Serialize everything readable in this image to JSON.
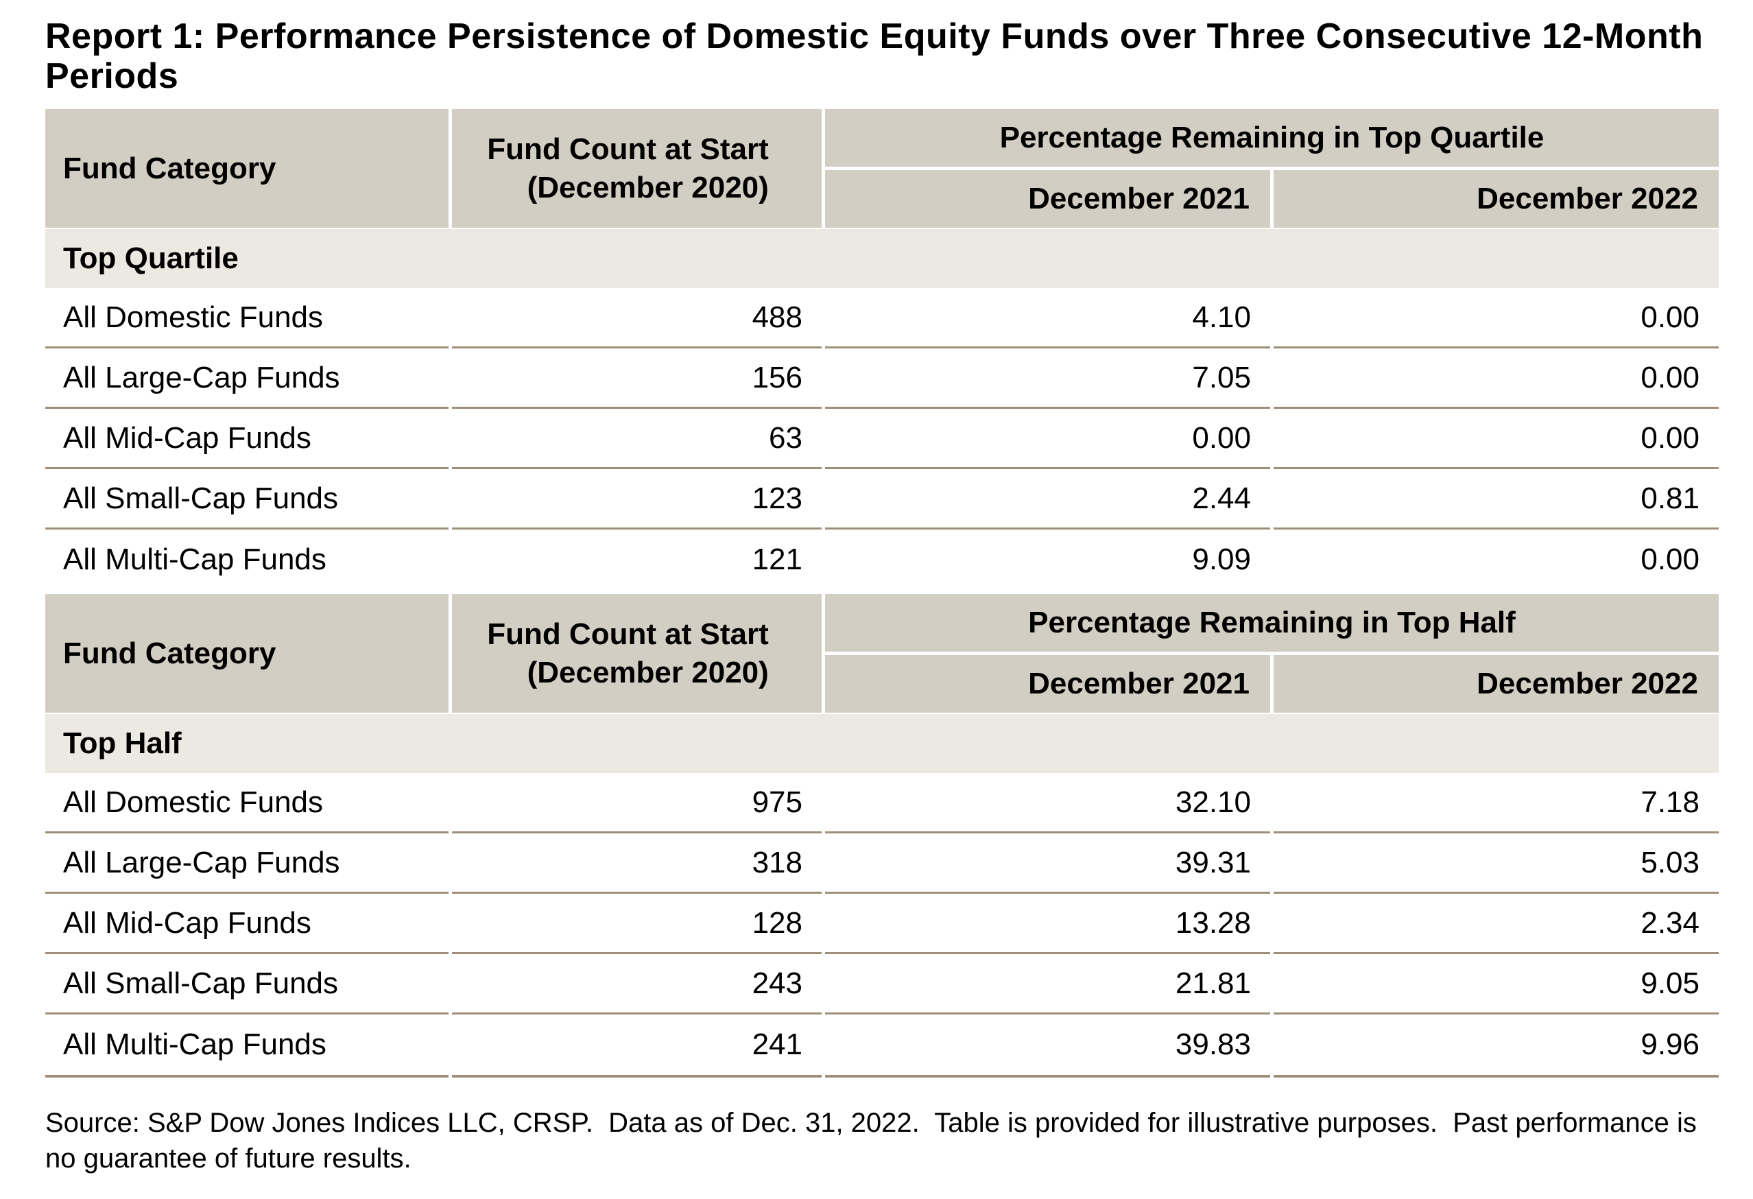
{
  "page": {
    "title": "Report 1: Performance Persistence of Domestic Equity Funds over Three Consecutive 12-Month Periods",
    "source_note": "Source: S&P Dow Jones Indices LLC, CRSP.  Data as of Dec. 31, 2022.  Table is provided for illustrative purposes.  Past performance is no guarantee of future results."
  },
  "colors": {
    "header_bg": "#d3cec3",
    "section_bg": "#ece9e2",
    "divider": "#a08f78",
    "text": "#000000",
    "background": "#ffffff"
  },
  "tables": [
    {
      "header": {
        "fund_category": "Fund Category",
        "fund_count_line1": "Fund Count at Start",
        "fund_count_line2": "(December 2020)",
        "group_label": "Percentage Remaining in Top Quartile",
        "period1": "December 2021",
        "period2": "December 2022"
      },
      "section_label": "Top Quartile",
      "rows": [
        {
          "category": "All Domestic Funds",
          "count": "488",
          "dec2021": "4.10",
          "dec2022": "0.00"
        },
        {
          "category": "All Large-Cap Funds",
          "count": "156",
          "dec2021": "7.05",
          "dec2022": "0.00"
        },
        {
          "category": "All Mid-Cap Funds",
          "count": "63",
          "dec2021": "0.00",
          "dec2022": "0.00"
        },
        {
          "category": "All Small-Cap Funds",
          "count": "123",
          "dec2021": "2.44",
          "dec2022": "0.81"
        },
        {
          "category": "All Multi-Cap Funds",
          "count": "121",
          "dec2021": "9.09",
          "dec2022": "0.00"
        }
      ]
    },
    {
      "header": {
        "fund_category": "Fund Category",
        "fund_count_line1": "Fund Count at Start",
        "fund_count_line2": "(December 2020)",
        "group_label": "Percentage Remaining in Top Half",
        "period1": "December 2021",
        "period2": "December 2022"
      },
      "section_label": "Top Half",
      "rows": [
        {
          "category": "All Domestic Funds",
          "count": "975",
          "dec2021": "32.10",
          "dec2022": "7.18"
        },
        {
          "category": "All Large-Cap Funds",
          "count": "318",
          "dec2021": "39.31",
          "dec2022": "5.03"
        },
        {
          "category": "All Mid-Cap Funds",
          "count": "128",
          "dec2021": "13.28",
          "dec2022": "2.34"
        },
        {
          "category": "All Small-Cap Funds",
          "count": "243",
          "dec2021": "21.81",
          "dec2022": "9.05"
        },
        {
          "category": "All Multi-Cap Funds",
          "count": "241",
          "dec2021": "39.83",
          "dec2022": "9.96"
        }
      ]
    }
  ]
}
